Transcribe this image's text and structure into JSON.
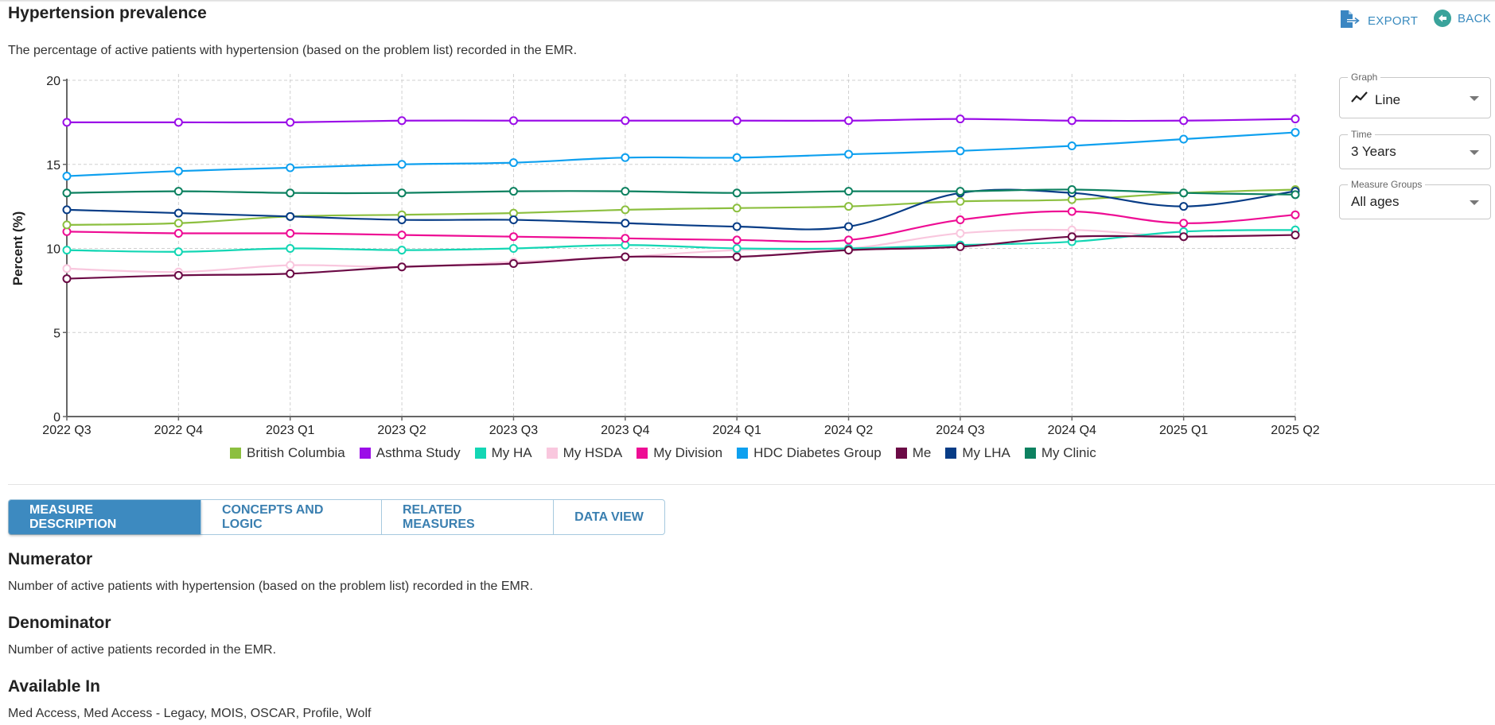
{
  "header": {
    "title": "Hypertension prevalence",
    "subtitle": "The percentage of active patients with hypertension (based on the problem list) recorded in the EMR.",
    "export_label": "EXPORT",
    "back_label": "BACK"
  },
  "controls": {
    "graph": {
      "label": "Graph",
      "value": "Line",
      "icon": "line-chart-icon"
    },
    "time": {
      "label": "Time",
      "value": "3 Years"
    },
    "measure_groups": {
      "label": "Measure Groups",
      "value": "All ages"
    }
  },
  "tabs": [
    {
      "label": "MEASURE DESCRIPTION",
      "active": true
    },
    {
      "label": "CONCEPTS AND LOGIC",
      "active": false
    },
    {
      "label": "RELATED MEASURES",
      "active": false
    },
    {
      "label": "DATA VIEW",
      "active": false
    }
  ],
  "description": {
    "numerator_heading": "Numerator",
    "numerator_text": "Number of active patients with hypertension (based on the problem list) recorded in the EMR.",
    "denominator_heading": "Denominator",
    "denominator_text": "Number of active patients recorded in the EMR.",
    "available_heading": "Available In",
    "available_text": "Med Access, Med Access - Legacy, MOIS, OSCAR, Profile, Wolf"
  },
  "chart_data": {
    "type": "line",
    "title": "",
    "xlabel": "",
    "ylabel": "Percent (%)",
    "ylim": [
      0,
      20
    ],
    "yticks": [
      0,
      5,
      10,
      15,
      20
    ],
    "grid": true,
    "legend_position": "bottom",
    "categories": [
      "2022 Q3",
      "2022 Q4",
      "2023 Q1",
      "2023 Q2",
      "2023 Q3",
      "2023 Q4",
      "2024 Q1",
      "2024 Q2",
      "2024 Q3",
      "2024 Q4",
      "2025 Q1",
      "2025 Q2"
    ],
    "series": [
      {
        "name": "British Columbia",
        "color": "#8cbf3f",
        "values": [
          11.4,
          11.5,
          11.9,
          12.0,
          12.1,
          12.3,
          12.4,
          12.5,
          12.8,
          12.9,
          13.3,
          13.5
        ]
      },
      {
        "name": "Asthma Study",
        "color": "#9b0ee8",
        "values": [
          17.5,
          17.5,
          17.5,
          17.6,
          17.6,
          17.6,
          17.6,
          17.6,
          17.7,
          17.6,
          17.6,
          17.7
        ]
      },
      {
        "name": "My HA",
        "color": "#13d6b4",
        "values": [
          9.9,
          9.8,
          10.0,
          9.9,
          10.0,
          10.2,
          10.0,
          10.0,
          10.2,
          10.4,
          11.0,
          11.1
        ]
      },
      {
        "name": "My HSDA",
        "color": "#f9c7de",
        "values": [
          8.8,
          8.6,
          9.0,
          8.9,
          9.2,
          9.5,
          9.9,
          10.0,
          10.9,
          11.1,
          10.7,
          10.8
        ]
      },
      {
        "name": "My Division",
        "color": "#ee0d94",
        "values": [
          11.0,
          10.9,
          10.9,
          10.8,
          10.7,
          10.6,
          10.5,
          10.5,
          11.7,
          12.2,
          11.5,
          12.0
        ]
      },
      {
        "name": "HDC Diabetes Group",
        "color": "#0ea0ef",
        "values": [
          14.3,
          14.6,
          14.8,
          15.0,
          15.1,
          15.4,
          15.4,
          15.6,
          15.8,
          16.1,
          16.5,
          16.9
        ]
      },
      {
        "name": "Me",
        "color": "#6b0a45",
        "values": [
          8.2,
          8.4,
          8.5,
          8.9,
          9.1,
          9.5,
          9.5,
          9.9,
          10.1,
          10.7,
          10.7,
          10.8
        ]
      },
      {
        "name": "My LHA",
        "color": "#073c86",
        "values": [
          12.3,
          12.1,
          11.9,
          11.7,
          11.7,
          11.5,
          11.3,
          11.3,
          13.3,
          13.3,
          12.5,
          13.4
        ]
      },
      {
        "name": "My Clinic",
        "color": "#0d8160",
        "values": [
          13.3,
          13.4,
          13.3,
          13.3,
          13.4,
          13.4,
          13.3,
          13.4,
          13.4,
          13.5,
          13.3,
          13.2
        ]
      }
    ]
  }
}
